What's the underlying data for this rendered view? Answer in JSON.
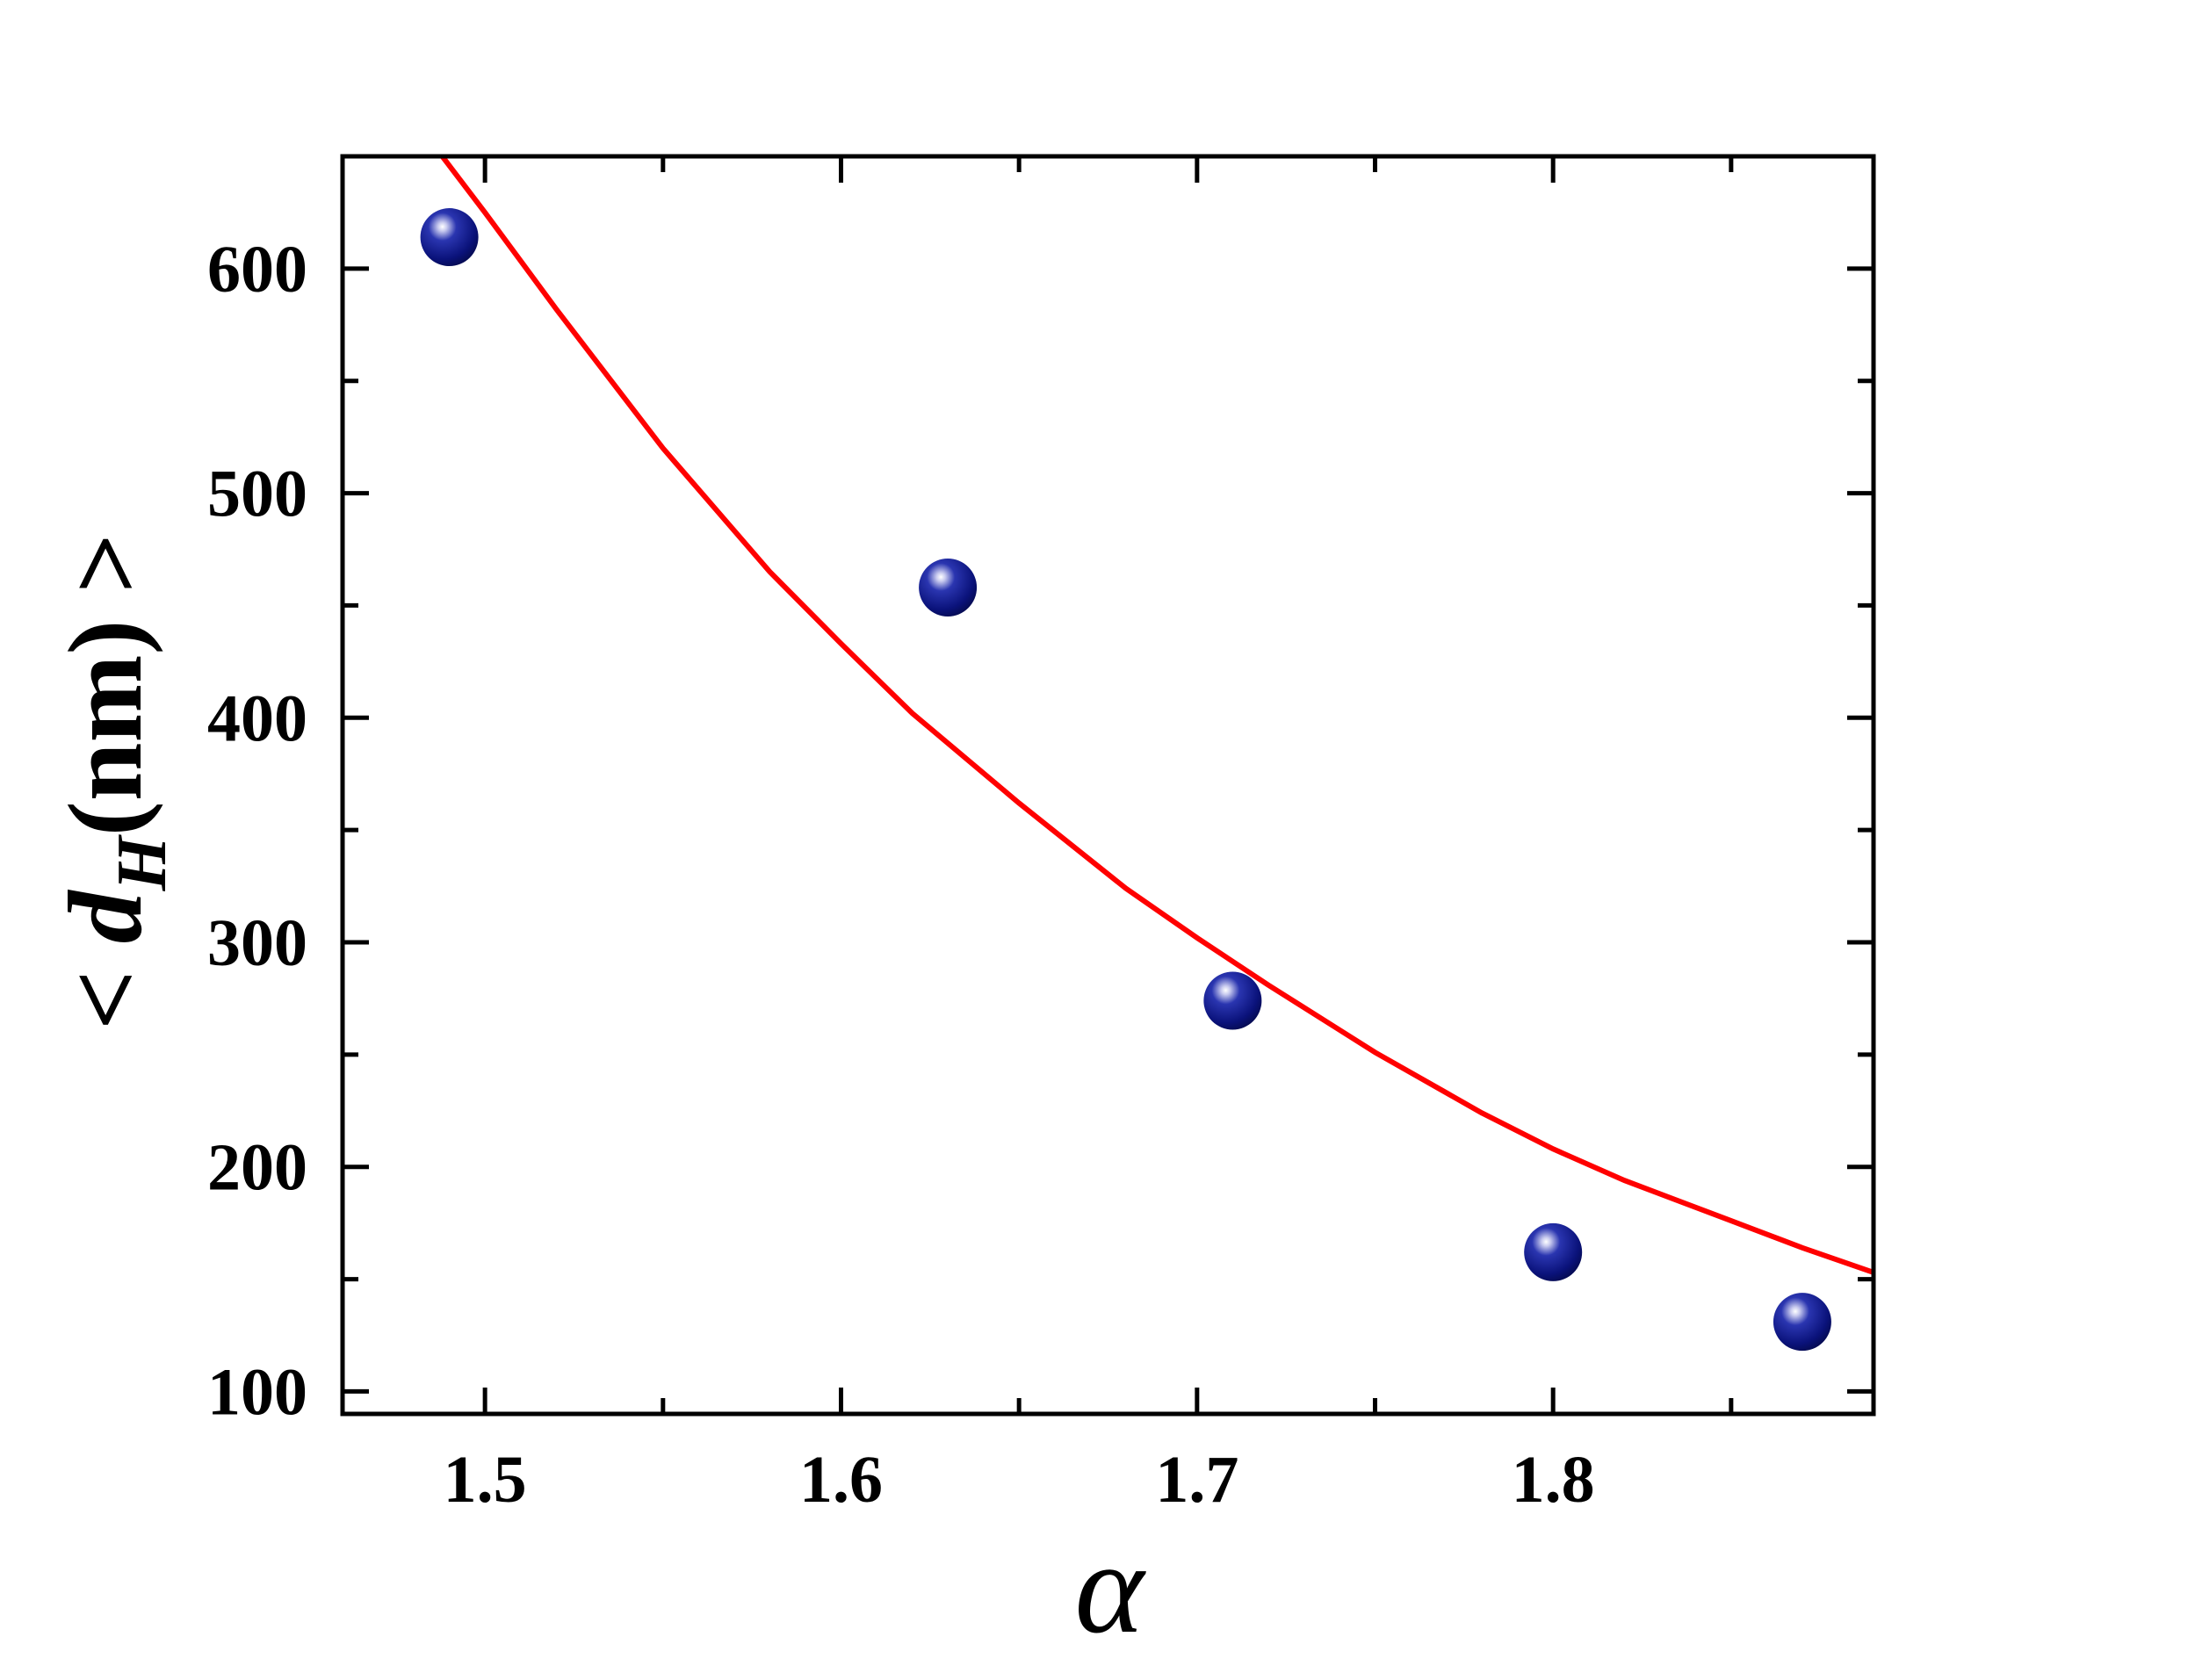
{
  "chart_data": {
    "type": "scatter",
    "xlabel": "α",
    "ylabel": {
      "open": "<",
      "symbol": "d",
      "subscript": "H",
      "units": "(nm)",
      "close": ">"
    },
    "xlim": [
      1.46,
      1.89
    ],
    "ylim": [
      90,
      650
    ],
    "x_ticks": [
      {
        "value": 1.5,
        "label": "1.5"
      },
      {
        "value": 1.6,
        "label": "1.6"
      },
      {
        "value": 1.7,
        "label": "1.7"
      },
      {
        "value": 1.8,
        "label": "1.8"
      }
    ],
    "x_minor_ticks": [
      1.55,
      1.65,
      1.75,
      1.85
    ],
    "y_ticks": [
      {
        "value": 100,
        "label": "100"
      },
      {
        "value": 200,
        "label": "200"
      },
      {
        "value": 300,
        "label": "300"
      },
      {
        "value": 400,
        "label": "400"
      },
      {
        "value": 500,
        "label": "500"
      },
      {
        "value": 600,
        "label": "600"
      }
    ],
    "y_minor_ticks": [
      150,
      250,
      350,
      450,
      550
    ],
    "grid": false,
    "legend": false,
    "series": [
      {
        "type": "scatter",
        "marker_color": "#0a127a",
        "x": [
          1.49,
          1.63,
          1.71,
          1.8,
          1.87
        ],
        "y": [
          614,
          458,
          274,
          162,
          131
        ]
      },
      {
        "type": "line",
        "line_color": "#ff0000",
        "x": [
          1.488,
          1.5,
          1.52,
          1.55,
          1.58,
          1.6,
          1.62,
          1.65,
          1.68,
          1.7,
          1.72,
          1.75,
          1.78,
          1.8,
          1.82,
          1.85,
          1.87,
          1.89
        ],
        "y": [
          650,
          625,
          582,
          520,
          465,
          433,
          402,
          362,
          324,
          302,
          281,
          251,
          224,
          208,
          194,
          176,
          164,
          153
        ]
      }
    ]
  }
}
